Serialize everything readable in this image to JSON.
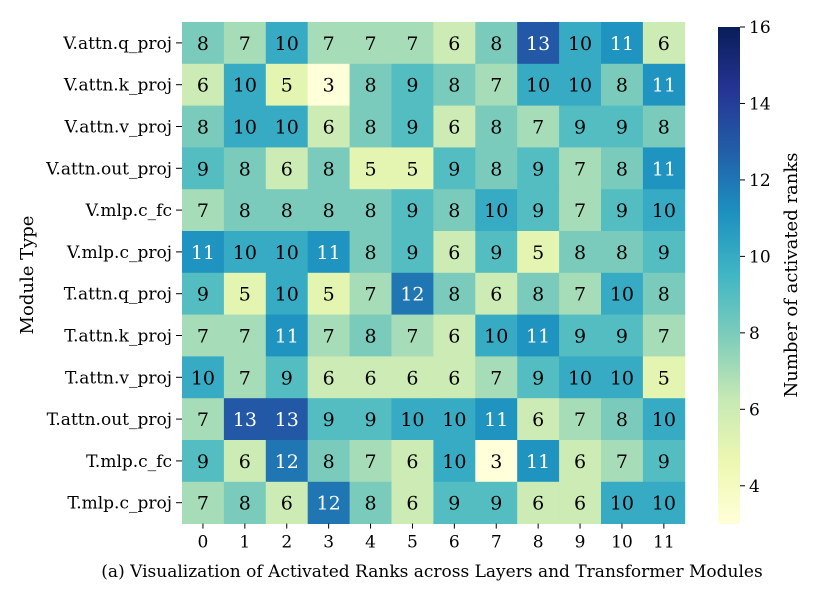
{
  "chart_data": {
    "type": "heatmap",
    "title": "",
    "caption": "(a) Visualization of Activated Ranks across Layers and Transformer Modules",
    "xlabel": "",
    "ylabel": "Module Type",
    "colorbar_label": "Number of activated ranks",
    "x": [
      "0",
      "1",
      "2",
      "3",
      "4",
      "5",
      "6",
      "7",
      "8",
      "9",
      "10",
      "11"
    ],
    "y": [
      "V.attn.q_proj",
      "V.attn.k_proj",
      "V.attn.v_proj",
      "V.attn.out_proj",
      "V.mlp.c_fc",
      "V.mlp.c_proj",
      "T.attn.q_proj",
      "T.attn.k_proj",
      "T.attn.v_proj",
      "T.attn.out_proj",
      "T.mlp.c_fc",
      "T.mlp.c_proj"
    ],
    "values": [
      [
        8,
        7,
        10,
        7,
        7,
        7,
        6,
        8,
        13,
        10,
        11,
        6
      ],
      [
        6,
        10,
        5,
        3,
        8,
        9,
        8,
        7,
        10,
        10,
        8,
        11
      ],
      [
        8,
        10,
        10,
        6,
        8,
        9,
        6,
        8,
        7,
        9,
        9,
        8
      ],
      [
        9,
        8,
        6,
        8,
        5,
        5,
        9,
        8,
        9,
        7,
        8,
        11
      ],
      [
        7,
        8,
        8,
        8,
        8,
        9,
        8,
        10,
        9,
        7,
        9,
        10
      ],
      [
        11,
        10,
        10,
        11,
        8,
        9,
        6,
        9,
        5,
        8,
        8,
        9
      ],
      [
        9,
        5,
        10,
        5,
        7,
        12,
        8,
        6,
        8,
        7,
        10,
        8
      ],
      [
        7,
        7,
        11,
        7,
        8,
        7,
        6,
        10,
        11,
        9,
        9,
        7
      ],
      [
        10,
        7,
        9,
        6,
        6,
        6,
        6,
        7,
        9,
        10,
        10,
        5
      ],
      [
        7,
        13,
        13,
        9,
        9,
        10,
        10,
        11,
        6,
        7,
        8,
        10
      ],
      [
        9,
        6,
        12,
        8,
        7,
        6,
        10,
        3,
        11,
        6,
        7,
        9
      ],
      [
        7,
        8,
        6,
        12,
        8,
        6,
        9,
        9,
        6,
        6,
        10,
        10
      ]
    ],
    "colorbar_range": [
      3,
      16
    ],
    "colorbar_ticks": [
      "4",
      "6",
      "8",
      "10",
      "12",
      "14",
      "16"
    ],
    "colormap": "YlGnBu"
  }
}
